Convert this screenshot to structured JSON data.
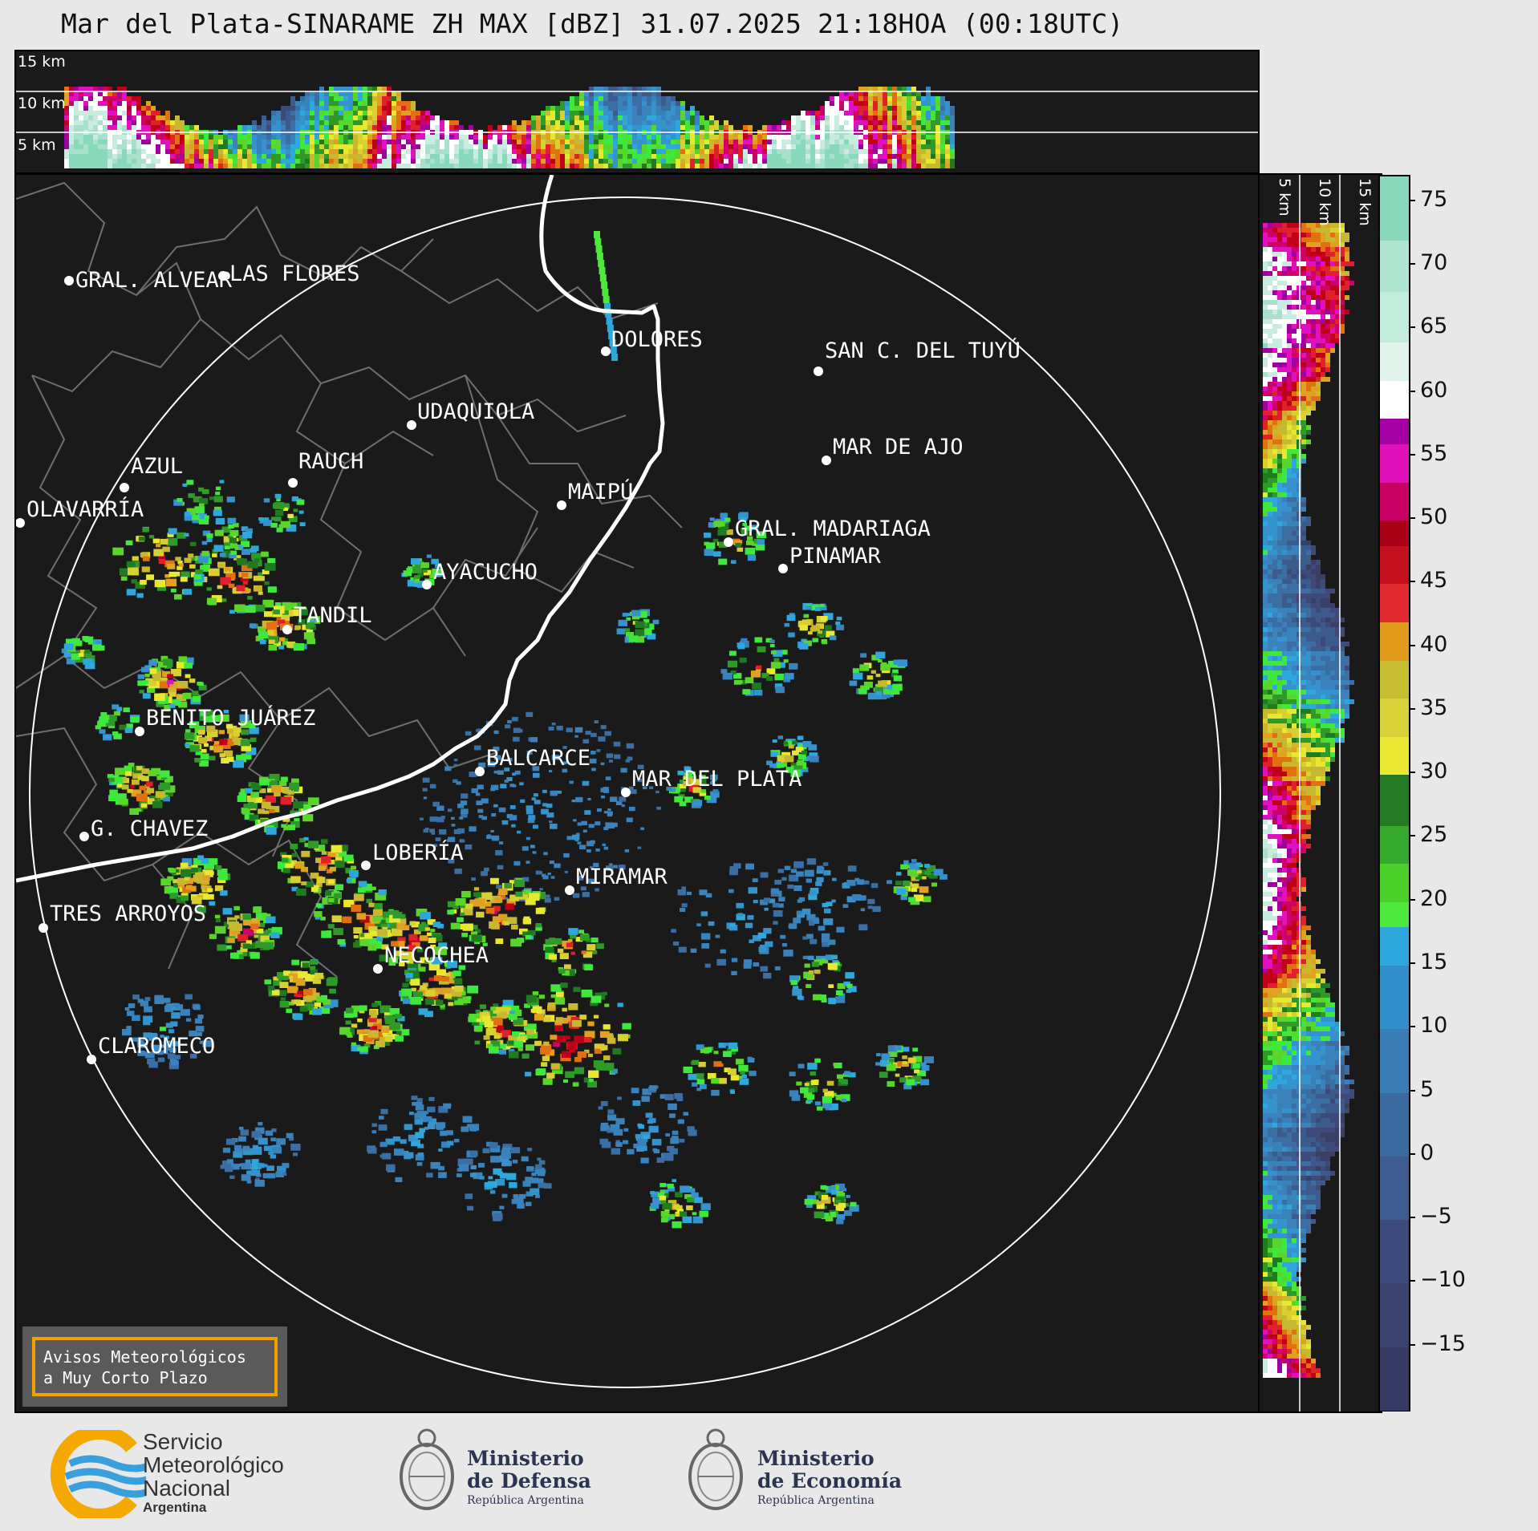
{
  "title": "Mar del Plata-SINARAME ZH MAX [dBZ] 31.07.2025 21:18HOA (00:18UTC)",
  "top_panel": {
    "height_labels": [
      "15 km",
      "10 km",
      "5 km"
    ]
  },
  "side_panel": {
    "height_labels": [
      "5 km",
      "10 km",
      "15 km"
    ]
  },
  "cities": [
    {
      "name": "GRAL. ALVEAR"
    },
    {
      "name": "LAS FLORES"
    },
    {
      "name": "DOLORES"
    },
    {
      "name": "SAN C. DEL TUYÚ"
    },
    {
      "name": "UDAQUIOLA"
    },
    {
      "name": "MAR DE AJO"
    },
    {
      "name": "AZUL"
    },
    {
      "name": "RAUCH"
    },
    {
      "name": "MAIPÚ"
    },
    {
      "name": "OLAVARRÍA"
    },
    {
      "name": "GRAL. MADARIAGA"
    },
    {
      "name": "PINAMAR"
    },
    {
      "name": "AYACUCHO"
    },
    {
      "name": "TANDIL"
    },
    {
      "name": "BENITO JUÁREZ"
    },
    {
      "name": "BALCARCE"
    },
    {
      "name": "MAR DEL PLATA"
    },
    {
      "name": "G. CHAVEZ"
    },
    {
      "name": "LOBERÍA"
    },
    {
      "name": "MIRAMAR"
    },
    {
      "name": "TRES ARROYOS"
    },
    {
      "name": "NECOCHEA"
    },
    {
      "name": "CLAROMECO"
    }
  ],
  "aviso": {
    "line1": "Avisos Meteorológicos",
    "line2": "a Muy Corto Plazo"
  },
  "colorbar": {
    "unit": "dBZ",
    "ticks": [
      "75",
      "70",
      "65",
      "60",
      "55",
      "50",
      "45",
      "40",
      "35",
      "30",
      "25",
      "20",
      "15",
      "10",
      "5",
      "0",
      "−5",
      "−10",
      "−15"
    ]
  },
  "footer": {
    "smn": {
      "line1": "Servicio",
      "line2": "Meteorológico",
      "line3": "Nacional",
      "line4": "Argentina"
    },
    "defensa": {
      "line1": "Ministerio",
      "line2": "de Defensa",
      "line3": "República Argentina"
    },
    "economia": {
      "line1": "Ministerio",
      "line2": "de Economía",
      "line3": "República Argentina"
    }
  },
  "colors": {
    "panel_bg": "#1a1a1a",
    "coastline": "#ffffff",
    "borders": "#777777",
    "aviso_border": "#f0a000",
    "smn_orange": "#f5a800",
    "smn_blue": "#3aa0dc"
  }
}
